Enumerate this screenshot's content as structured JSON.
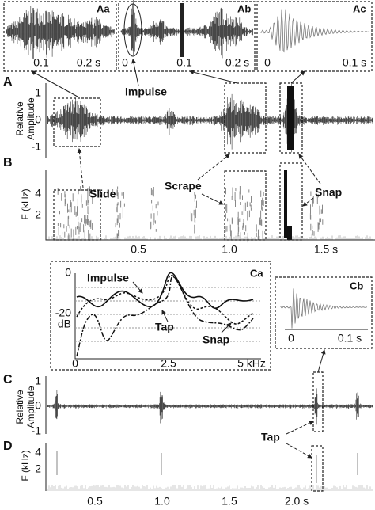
{
  "insets": {
    "Aa": {
      "label": "Aa",
      "xticks": [
        "0.1",
        "0.2 s"
      ]
    },
    "Ab": {
      "label": "Ab",
      "xticks": [
        "0",
        "0.1",
        "0.2 s"
      ]
    },
    "Ac": {
      "label": "Ac",
      "xticks": [
        "0",
        "0.1 s"
      ]
    }
  },
  "panel_a": {
    "label": "A",
    "ylabel": [
      "Relative",
      "Amplitude"
    ],
    "yticks": [
      "1",
      "0",
      "-1"
    ],
    "annotation": "Impulse"
  },
  "panel_b": {
    "label": "B",
    "ylabel": "F (kHz)",
    "yticks": [
      "4",
      "2"
    ],
    "xticks": [
      "0.5",
      "1.0",
      "1.5 s"
    ],
    "annotations": [
      "Slide",
      "Scrape",
      "Snap"
    ]
  },
  "inset_ca": {
    "label": "Ca",
    "yticks": [
      "0",
      "-20"
    ],
    "yunit": "dB",
    "xticks": [
      "0",
      "2.5",
      "5 kHz"
    ],
    "annotations": [
      "Impulse",
      "Tap",
      "Snap"
    ]
  },
  "inset_cb": {
    "label": "Cb",
    "xticks": [
      "0",
      "0.1 s"
    ]
  },
  "panel_c": {
    "label": "C",
    "ylabel": [
      "Relative",
      "Amplitude"
    ],
    "yticks": [
      "1",
      "0",
      "-1"
    ],
    "annotation": "Tap"
  },
  "panel_d": {
    "label": "D",
    "ylabel": "F (kHz)",
    "yticks": [
      "4",
      "2"
    ],
    "xticks": [
      "0.5",
      "1.0",
      "1.5",
      "2.0 s"
    ]
  }
}
